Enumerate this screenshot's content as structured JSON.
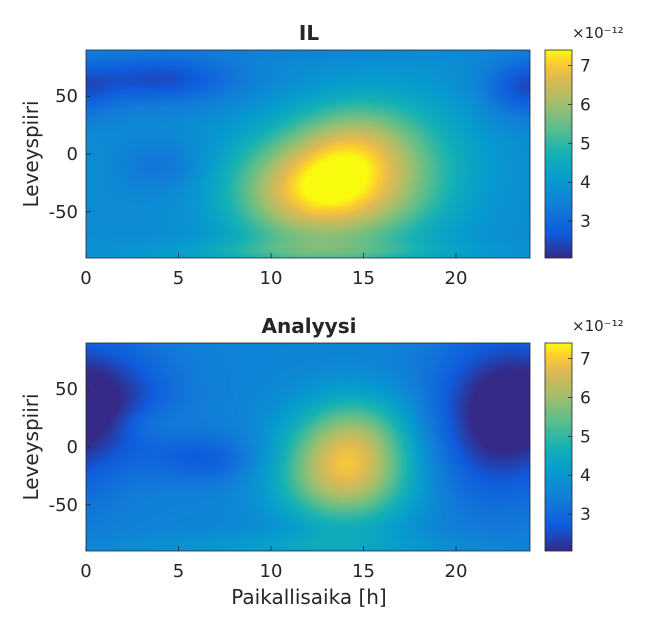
{
  "colors": {
    "parula_low": "#352a87",
    "parula_blue": "#0f5cdd",
    "parula_cyan": "#1ba8b9",
    "parula_green": "#7fbd5c",
    "parula_orange": "#fbbc3d",
    "parula_high": "#f9fb0e",
    "axis": "#262626"
  },
  "xlabel": "Paikallisaika [h]",
  "chart_data": [
    {
      "type": "heatmap",
      "title": "IL",
      "xlabel": "",
      "ylabel": "Leveyspiiri",
      "xlim": [
        0,
        24
      ],
      "ylim": [
        -90,
        90
      ],
      "xticks": [
        0,
        5,
        10,
        15,
        20
      ],
      "yticks": [
        -50,
        0,
        50
      ],
      "colorbar": {
        "ticks": [
          3,
          4,
          5,
          6,
          7
        ],
        "range": [
          2.05,
          7.4
        ],
        "exponent": "×10⁻¹²"
      },
      "blobs": [
        {
          "x": 13.5,
          "y": -30,
          "sx": 3.2,
          "sy": 35,
          "amp": 3.1
        },
        {
          "x": 14.5,
          "y": 15,
          "sx": 2.3,
          "sy": 25,
          "amp": 1.1
        },
        {
          "x": 10.5,
          "y": -35,
          "sx": 2.5,
          "sy": 35,
          "amp": 0.9
        },
        {
          "x": 17.5,
          "y": -5,
          "sx": 3.0,
          "sy": 45,
          "amp": 0.8
        },
        {
          "x": 4.0,
          "y": 65,
          "sx": 3.0,
          "sy": 15,
          "amp": -1.2
        },
        {
          "x": 23.5,
          "y": 55,
          "sx": 1.5,
          "sy": 18,
          "amp": -0.9
        },
        {
          "x": 4.0,
          "y": -10,
          "sx": 1.5,
          "sy": 15,
          "amp": -0.5
        },
        {
          "x": 12.0,
          "y": -85,
          "sx": 6.0,
          "sy": 8,
          "amp": 0.8
        },
        {
          "x": 12.0,
          "y": 95,
          "sx": 6.0,
          "sy": 8,
          "amp": -0.3
        }
      ],
      "base": 3.7
    },
    {
      "type": "heatmap",
      "title": "Analyysi",
      "xlabel": "Paikallisaika [h]",
      "ylabel": "Leveyspiiri",
      "xlim": [
        0,
        24
      ],
      "ylim": [
        -90,
        90
      ],
      "xticks": [
        0,
        5,
        10,
        15,
        20
      ],
      "yticks": [
        -50,
        0,
        50
      ],
      "colorbar": {
        "ticks": [
          3,
          4,
          5,
          6,
          7
        ],
        "range": [
          2.05,
          7.4
        ],
        "exponent": "×10⁻¹²"
      },
      "blobs": [
        {
          "x": 14.0,
          "y": -25,
          "sx": 2.5,
          "sy": 30,
          "amp": 2.9
        },
        {
          "x": 14.5,
          "y": 15,
          "sx": 2.2,
          "sy": 25,
          "amp": 1.4
        },
        {
          "x": 1.5,
          "y": 40,
          "sx": 2.5,
          "sy": 35,
          "amp": -1.1
        },
        {
          "x": 22.0,
          "y": 25,
          "sx": 2.5,
          "sy": 50,
          "amp": -1.5
        },
        {
          "x": 6.5,
          "y": -10,
          "sx": 2.0,
          "sy": 15,
          "amp": -0.8
        },
        {
          "x": 3.5,
          "y": 20,
          "sx": 1.5,
          "sy": 12,
          "amp": 0.4
        },
        {
          "x": 12.0,
          "y": -85,
          "sx": 6.0,
          "sy": 8,
          "amp": 0.6
        }
      ],
      "base": 3.55
    }
  ]
}
